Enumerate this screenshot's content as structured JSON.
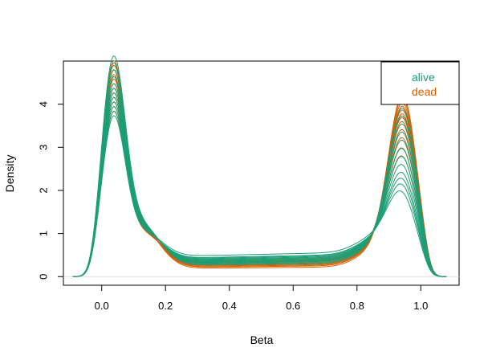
{
  "chart_data": {
    "type": "line",
    "title": "",
    "xlabel": "Beta",
    "ylabel": "Density",
    "xlim": [
      -0.12,
      1.12
    ],
    "ylim": [
      -0.2,
      5.0
    ],
    "xticks": [
      0.0,
      0.2,
      0.4,
      0.6,
      0.8,
      1.0
    ],
    "xtick_labels": [
      "0.0",
      "0.2",
      "0.4",
      "0.6",
      "0.8",
      "1.0"
    ],
    "yticks": [
      0,
      1,
      2,
      3,
      4
    ],
    "ytick_labels": [
      "0",
      "1",
      "2",
      "3",
      "4"
    ],
    "grid": false,
    "legend_position": "top-right",
    "zero_line": true,
    "colors": {
      "alive": "#1b9e77",
      "dead": "#d95f02",
      "zero_line": "#dddddd",
      "axis": "#000000"
    },
    "series": [
      {
        "name": "alive",
        "color": "#1b9e77",
        "label": "alive"
      },
      {
        "name": "dead",
        "color": "#d95f02",
        "label": "dead"
      }
    ],
    "curves": [
      {
        "group": "dead",
        "peak1_height": 4.65,
        "peak2_height": 3.95,
        "trough": 0.22
      },
      {
        "group": "dead",
        "peak1_height": 4.55,
        "peak2_height": 3.85,
        "trough": 0.25
      },
      {
        "group": "dead",
        "peak1_height": 4.45,
        "peak2_height": 3.75,
        "trough": 0.27
      },
      {
        "group": "dead",
        "peak1_height": 4.35,
        "peak2_height": 3.65,
        "trough": 0.29
      },
      {
        "group": "dead",
        "peak1_height": 4.25,
        "peak2_height": 3.55,
        "trough": 0.31
      },
      {
        "group": "dead",
        "peak1_height": 4.15,
        "peak2_height": 3.45,
        "trough": 0.33
      },
      {
        "group": "dead",
        "peak1_height": 4.05,
        "peak2_height": 3.35,
        "trough": 0.35
      },
      {
        "group": "dead",
        "peak1_height": 3.95,
        "peak2_height": 3.25,
        "trough": 0.36
      },
      {
        "group": "dead",
        "peak1_height": 3.85,
        "peak2_height": 3.05,
        "trough": 0.38
      },
      {
        "group": "dead",
        "peak1_height": 3.75,
        "peak2_height": 2.85,
        "trough": 0.4
      },
      {
        "group": "dead",
        "peak1_height": 3.65,
        "peak2_height": 2.6,
        "trough": 0.42
      },
      {
        "group": "dead",
        "peak1_height": 3.55,
        "peak2_height": 2.4,
        "trough": 0.44
      },
      {
        "group": "alive",
        "peak1_height": 4.75,
        "peak2_height": 3.6,
        "trough": 0.3
      },
      {
        "group": "alive",
        "peak1_height": 4.6,
        "peak2_height": 3.4,
        "trough": 0.33
      },
      {
        "group": "alive",
        "peak1_height": 4.45,
        "peak2_height": 3.2,
        "trough": 0.35
      },
      {
        "group": "alive",
        "peak1_height": 4.3,
        "peak2_height": 3.0,
        "trough": 0.37
      },
      {
        "group": "alive",
        "peak1_height": 4.15,
        "peak2_height": 2.8,
        "trough": 0.39
      },
      {
        "group": "alive",
        "peak1_height": 4.05,
        "peak2_height": 2.6,
        "trough": 0.4
      },
      {
        "group": "alive",
        "peak1_height": 3.95,
        "peak2_height": 2.4,
        "trough": 0.42
      },
      {
        "group": "alive",
        "peak1_height": 3.85,
        "peak2_height": 2.2,
        "trough": 0.44
      },
      {
        "group": "alive",
        "peak1_height": 3.75,
        "peak2_height": 2.0,
        "trough": 0.46
      },
      {
        "group": "alive",
        "peak1_height": 3.65,
        "peak2_height": 1.85,
        "trough": 0.48
      },
      {
        "group": "alive",
        "peak1_height": 3.55,
        "peak2_height": 1.7,
        "trough": 0.5
      },
      {
        "group": "alive",
        "peak1_height": 3.45,
        "peak2_height": 1.5,
        "trough": 0.55
      }
    ]
  }
}
